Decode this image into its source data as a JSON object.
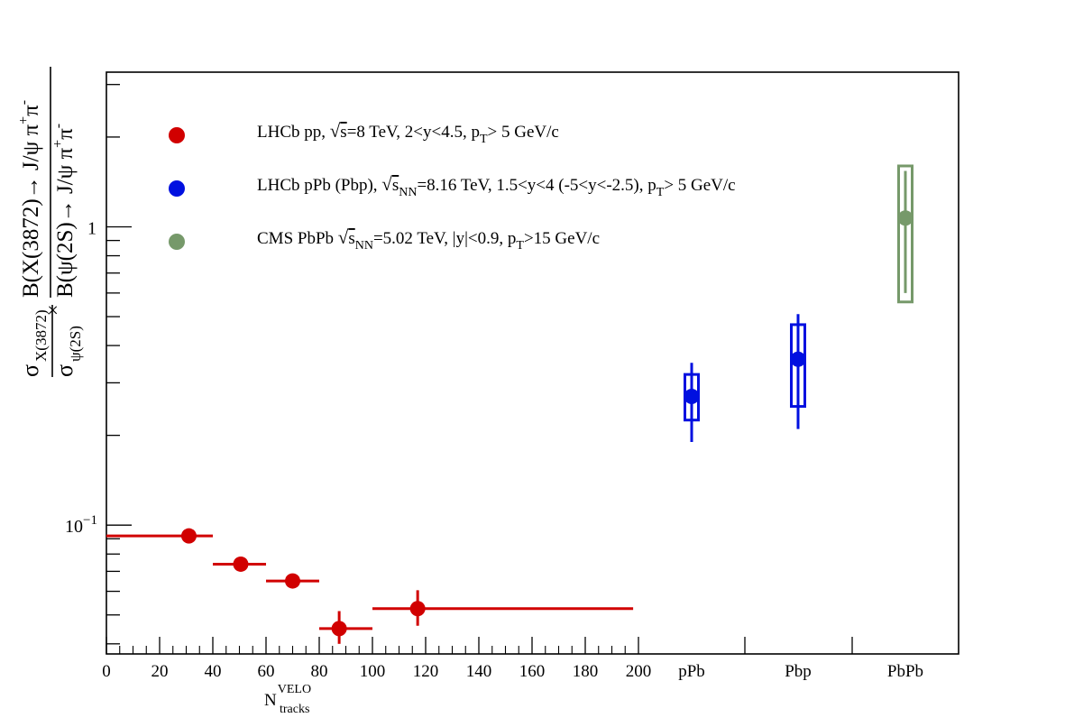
{
  "chart_data": {
    "type": "scatter",
    "y_scale": "log",
    "ylim": [
      0.037,
      3.3
    ],
    "x_numeric": {
      "xlim": [
        0,
        200
      ],
      "major_ticks": [
        0,
        20,
        40,
        60,
        80,
        100,
        120,
        140,
        160,
        180,
        200
      ],
      "tick_labels": [
        "0",
        "20",
        "40",
        "60",
        "80",
        "100",
        "120",
        "140",
        "160",
        "180",
        "200"
      ]
    },
    "x_categories": [
      "pPb",
      "Pbp",
      "PbPb"
    ],
    "xlabel": {
      "base": "N",
      "sup": "VELO",
      "sub": "tracks"
    },
    "ylabel": {
      "sigma_num": "σ",
      "sigma_num_sub": "X(3872)",
      "sigma_den": "σ",
      "sigma_den_sub": "ψ(2S)",
      "times": "×",
      "br_num": "B(X(3872)→ J/ψ π",
      "br_den": "B(ψ(2S)→ J/ψ π",
      "pi_plus": "+",
      "pi": "π",
      "pi_minus": "-"
    },
    "y_tick_labels": {
      "one": "1",
      "tenth_base": "10",
      "tenth_exp": "−1"
    },
    "series": [
      {
        "name": "LHCb pp",
        "color": "#d10000",
        "points": [
          {
            "x": 31,
            "xerr": [
              0,
              40
            ],
            "y": 0.092,
            "yerr": [
              0.089,
              0.095
            ]
          },
          {
            "x": 50.5,
            "xerr": [
              40,
              60
            ],
            "y": 0.074,
            "yerr": [
              0.072,
              0.076
            ]
          },
          {
            "x": 70,
            "xerr": [
              60,
              80
            ],
            "y": 0.065,
            "yerr": [
              0.062,
              0.068
            ]
          },
          {
            "x": 87.5,
            "xerr": [
              80,
              100
            ],
            "y": 0.045,
            "yerr": [
              0.04,
              0.0515
            ]
          },
          {
            "x": 117,
            "xerr": [
              100,
              198
            ],
            "y": 0.0525,
            "yerr": [
              0.046,
              0.0605
            ]
          }
        ]
      },
      {
        "name": "LHCb pPb (Pbp)",
        "color": "#0010e0",
        "points": [
          {
            "category": "pPb",
            "y": 0.27,
            "yerr": [
              0.19,
              0.35
            ],
            "syst": [
              0.225,
              0.32
            ]
          },
          {
            "category": "Pbp",
            "y": 0.36,
            "yerr": [
              0.21,
              0.51
            ],
            "syst": [
              0.25,
              0.47
            ]
          }
        ]
      },
      {
        "name": "CMS PbPb",
        "color": "#76996a",
        "points": [
          {
            "category": "PbPb",
            "y": 1.07,
            "yerr": [
              0.6,
              1.54
            ],
            "syst": [
              0.56,
              1.6
            ]
          }
        ]
      }
    ],
    "legend": [
      {
        "color": "#d10000",
        "t1": "LHCb pp, ",
        "sqrt_body": "s",
        "t2": "=8 TeV, 2<y<4.5, p",
        "sub": "T",
        "t3": "> 5 GeV/c"
      },
      {
        "color": "#0010e0",
        "t1": "LHCb pPb (Pbp), ",
        "sqrt_body": "s",
        "sqrt_sub": "NN",
        "t2": "=8.16 TeV,  1.5<y<4 (-5<y<-2.5), p",
        "sub": "T",
        "t3": "> 5 GeV/c"
      },
      {
        "color": "#76996a",
        "t1": "CMS PbPb ",
        "sqrt_body": "s",
        "sqrt_sub": "NN",
        "t2": "=5.02 TeV, |y|<0.9, p",
        "sub": "T",
        "t3": ">15 GeV/c"
      }
    ],
    "legend_placement": "top-left",
    "grid": false
  }
}
